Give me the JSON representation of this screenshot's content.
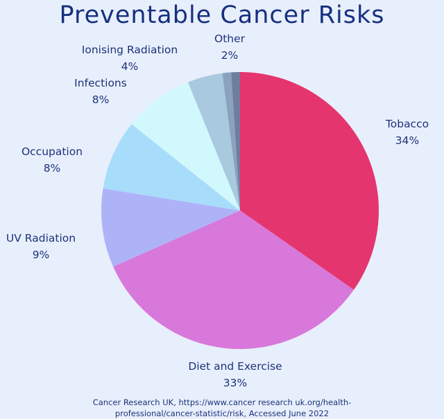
{
  "chart_data": {
    "type": "pie",
    "title": "Preventable Cancer Risks",
    "categories": [
      "Tobacco",
      "Diet and Exercise",
      "UV Radiation",
      "Occupation",
      "Infections",
      "Ionising Radiation",
      "Other"
    ],
    "values": [
      34,
      33,
      9,
      8,
      8,
      4,
      2
    ],
    "value_labels": [
      "34%",
      "33%",
      "9%",
      "8%",
      "8%",
      "4%",
      "2%"
    ],
    "colors": [
      "#e5356f",
      "#d878da",
      "#aeb3f8",
      "#a7dcfb",
      "#d1f8fd",
      "#a8c9de",
      "#8aa2bd",
      "#6f7e9f"
    ],
    "source_line1": "Cancer Research UK, https://www.cancer research uk.org/health-",
    "source_line2": "professional/cancer-statistic/risk, Accessed June 2022"
  }
}
